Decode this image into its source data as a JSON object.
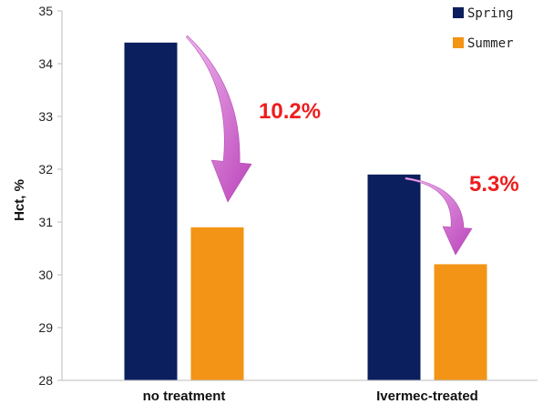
{
  "chart_data": {
    "type": "bar",
    "title": "",
    "xlabel": "",
    "ylabel": "Hct, %",
    "ylim": [
      28,
      35
    ],
    "yticks": [
      28,
      29,
      30,
      31,
      32,
      33,
      34,
      35
    ],
    "categories": [
      "no treatment",
      "Ivermec-treated"
    ],
    "series": [
      {
        "name": "Spring",
        "values": [
          34.4,
          31.9
        ],
        "color": "#0b1f5e"
      },
      {
        "name": "Summer",
        "values": [
          30.9,
          30.2
        ],
        "color": "#f39416"
      }
    ],
    "legend_position": "top-right",
    "grid": false,
    "annotations": [
      {
        "text": "10.2%",
        "category": "no treatment",
        "color": "#ee1c1c",
        "arrow_color": "#c95ec9"
      },
      {
        "text": "5.3%",
        "category": "Ivermec-treated",
        "color": "#ee1c1c",
        "arrow_color": "#c95ec9"
      }
    ]
  }
}
